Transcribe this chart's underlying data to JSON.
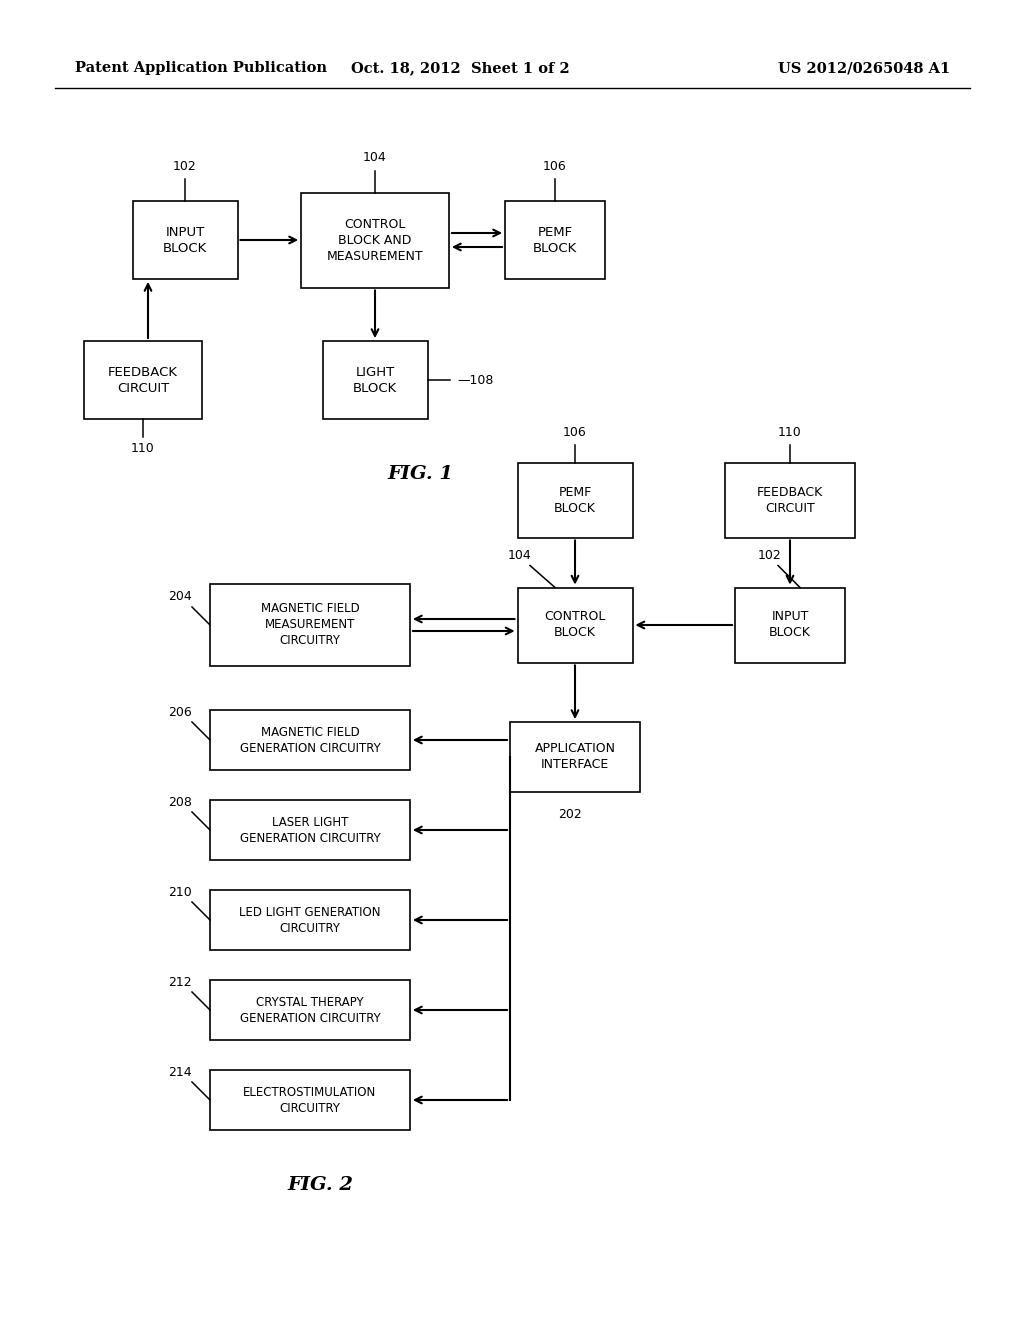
{
  "header_left": "Patent Application Publication",
  "header_mid": "Oct. 18, 2012  Sheet 1 of 2",
  "header_right": "US 2012/0265048 A1",
  "fig1_title": "FIG. 1",
  "fig2_title": "FIG. 2",
  "bg_color": "#ffffff",
  "box_color": "#ffffff",
  "box_edge": "#000000",
  "text_color": "#000000",
  "arrow_color": "#000000"
}
